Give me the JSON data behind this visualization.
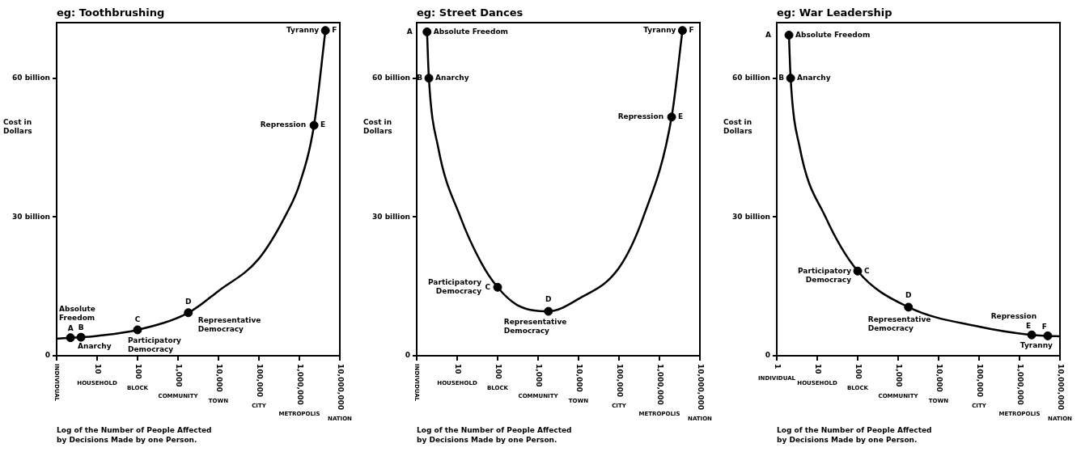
{
  "chart_data": [
    {
      "type": "line",
      "title": "eg: Toothbrushing",
      "xlabel": "Log of the Number of People Affected by Decisions Made by one Person.",
      "ylabel": "Cost in Dollars",
      "log": "x",
      "xlim": [
        1,
        10000000
      ],
      "xticks": [
        {
          "value": 1,
          "label": "INDIVIDUAL"
        },
        {
          "value": 10,
          "label": "10 HOUSEHOLD"
        },
        {
          "value": 100,
          "label": "100 BLOCK"
        },
        {
          "value": 1000,
          "label": "1,000 COMMUNITY"
        },
        {
          "value": 10000,
          "label": "10,000 TOWN"
        },
        {
          "value": 100000,
          "label": "100,000 CITY"
        },
        {
          "value": 1000000,
          "label": "1,000,000 METROPOLIS"
        },
        {
          "value": 10000000,
          "label": "10,000,000 NATION"
        }
      ],
      "ylim": [
        0,
        72
      ],
      "yticks": [
        {
          "value": 0,
          "label": "0"
        },
        {
          "value": 30,
          "label": "30 billion"
        },
        {
          "value": 60,
          "label": "60 billion"
        }
      ],
      "series": [
        {
          "type": "line",
          "color": "#000000",
          "x": [
            1,
            2.2,
            4,
            10,
            100,
            1800,
            10000,
            100000,
            500000,
            1000000,
            2300000,
            4400000
          ],
          "values": [
            3.7,
            3.9,
            4.0,
            4.3,
            5.6,
            9.3,
            14,
            21,
            31,
            37,
            49.8,
            70.3
          ]
        },
        {
          "type": "scatter",
          "marker": "circle",
          "color": "#000000",
          "x": [
            2.2,
            4,
            100,
            1800,
            2300000,
            4400000
          ],
          "values": [
            3.9,
            4.0,
            5.6,
            9.3,
            49.8,
            70.3
          ]
        }
      ],
      "annotations": [
        {
          "text": "A",
          "x": 2.2,
          "y": 3.9
        },
        {
          "text": "B",
          "x": 4,
          "y": 4.0
        },
        {
          "text": "Anarchy",
          "x": 4,
          "y": 4.0
        },
        "Absolute Freedom",
        {
          "text": "C",
          "x": 100,
          "y": 5.6
        },
        {
          "text": "Participatory Democracy",
          "x": 100,
          "y": 5.6
        },
        {
          "text": "D",
          "x": 1800,
          "y": 9.3
        },
        {
          "text": "Representative Democracy",
          "x": 1800,
          "y": 9.3
        },
        {
          "text": "Repression",
          "x": 2300000,
          "y": 49.8
        },
        {
          "text": "E",
          "x": 2300000,
          "y": 49.8
        },
        {
          "text": "Tyranny",
          "x": 4400000,
          "y": 70.3
        },
        {
          "text": "F",
          "x": 4400000,
          "y": 70.3
        }
      ]
    },
    {
      "type": "line",
      "title": "eg: Street Dances",
      "xlabel": "Log of the Number of People Affected by Decisions Made by one Person.",
      "ylabel": "Cost in Dollars",
      "log": "x",
      "xlim": [
        1,
        10000000
      ],
      "xticks": [
        {
          "value": 1,
          "label": "INDIVIDUAL"
        },
        {
          "value": 10,
          "label": "10 HOUSEHOLD"
        },
        {
          "value": 100,
          "label": "100 BLOCK"
        },
        {
          "value": 1000,
          "label": "1,000 COMMUNITY"
        },
        {
          "value": 10000,
          "label": "10,000 TOWN"
        },
        {
          "value": 100000,
          "label": "100,000 CITY"
        },
        {
          "value": 1000000,
          "label": "1,000,000 METROPOLIS"
        },
        {
          "value": 10000000,
          "label": "10,000,000 NATION"
        }
      ],
      "ylim": [
        0,
        72
      ],
      "yticks": [
        {
          "value": 0,
          "label": "0"
        },
        {
          "value": 30,
          "label": "30 billion"
        },
        {
          "value": 60,
          "label": "60 billion"
        }
      ],
      "series": [
        {
          "type": "line",
          "color": "#000000",
          "x": [
            1.8,
            2,
            3.4,
            12,
            40,
            100,
            300,
            1800,
            10000,
            100000,
            400000,
            2000000,
            3700000
          ],
          "values": [
            70,
            60,
            45,
            30,
            20,
            14.8,
            11,
            9.6,
            12.3,
            19,
            30,
            51.6,
            70.3
          ]
        },
        {
          "type": "scatter",
          "marker": "circle",
          "color": "#000000",
          "x": [
            1.8,
            2,
            100,
            1800,
            2000000,
            3700000
          ],
          "values": [
            70,
            60,
            14.8,
            9.6,
            51.6,
            70.3
          ]
        }
      ],
      "annotations": [
        {
          "text": "A",
          "x": 1.8,
          "y": 70
        },
        {
          "text": "Absolute Freedom",
          "x": 1.8,
          "y": 70
        },
        {
          "text": "B",
          "x": 2,
          "y": 60
        },
        {
          "text": "Anarchy",
          "x": 2,
          "y": 60
        },
        {
          "text": "C",
          "x": 100,
          "y": 14.8
        },
        {
          "text": "Participatory Democracy",
          "x": 100,
          "y": 14.8
        },
        {
          "text": "D",
          "x": 1800,
          "y": 9.6
        },
        {
          "text": "Representative Democracy",
          "x": 1800,
          "y": 9.6
        },
        {
          "text": "Repression",
          "x": 2000000,
          "y": 51.6
        },
        {
          "text": "E",
          "x": 2000000,
          "y": 51.6
        },
        {
          "text": "Tyranny",
          "x": 3700000,
          "y": 70.3
        },
        {
          "text": "F",
          "x": 3700000,
          "y": 70.3
        }
      ]
    },
    {
      "type": "line",
      "title": "eg: War Leadership",
      "xlabel": "Log of the Number of People Affected by Decisions Made by one Person.",
      "ylabel": "Cost in Dollars",
      "log": "x",
      "xlim": [
        1,
        10000000
      ],
      "xticks": [
        {
          "value": 1,
          "label": "1 INDIVIDUAL"
        },
        {
          "value": 10,
          "label": "10 HOUSEHOLD"
        },
        {
          "value": 100,
          "label": "100 BLOCK"
        },
        {
          "value": 1000,
          "label": "1,000 COMMUNITY"
        },
        {
          "value": 10000,
          "label": "10,000 TOWN"
        },
        {
          "value": 100000,
          "label": "100,000 CITY"
        },
        {
          "value": 1000000,
          "label": "1,000,000 METROPOLIS"
        },
        {
          "value": 10000000,
          "label": "10,000,000 NATION"
        }
      ],
      "ylim": [
        0,
        72
      ],
      "yticks": [
        {
          "value": 0,
          "label": "0"
        },
        {
          "value": 30,
          "label": "30 billion"
        },
        {
          "value": 60,
          "label": "60 billion"
        }
      ],
      "series": [
        {
          "type": "line",
          "color": "#000000",
          "x": [
            2,
            2.2,
            3.7,
            16,
            100,
            1800,
            100000,
            2000000,
            5000000,
            10000000
          ],
          "values": [
            69.3,
            60,
            45,
            30,
            18.3,
            10.5,
            6.3,
            4.5,
            4.3,
            4.2
          ]
        },
        {
          "type": "scatter",
          "marker": "circle",
          "color": "#000000",
          "x": [
            2,
            2.2,
            100,
            1800,
            2000000,
            5000000
          ],
          "values": [
            69.3,
            60,
            18.3,
            10.5,
            4.5,
            4.3
          ]
        }
      ],
      "annotations": [
        {
          "text": "A",
          "x": 2,
          "y": 69.3
        },
        {
          "text": "Absolute Freedom",
          "x": 2,
          "y": 69.3
        },
        {
          "text": "B",
          "x": 2.2,
          "y": 60
        },
        {
          "text": "Anarchy",
          "x": 2.2,
          "y": 60
        },
        {
          "text": "Participatory Democracy",
          "x": 100,
          "y": 18.3
        },
        {
          "text": "C",
          "x": 100,
          "y": 18.3
        },
        {
          "text": "D",
          "x": 1800,
          "y": 10.5
        },
        {
          "text": "Representative Democracy",
          "x": 1800,
          "y": 10.5
        },
        {
          "text": "Repression",
          "x": 2000000,
          "y": 4.5
        },
        {
          "text": "E",
          "x": 2000000,
          "y": 4.5
        },
        {
          "text": "F",
          "x": 5000000,
          "y": 4.3
        },
        {
          "text": "Tyranny",
          "x": 5000000,
          "y": 4.3
        }
      ]
    }
  ]
}
